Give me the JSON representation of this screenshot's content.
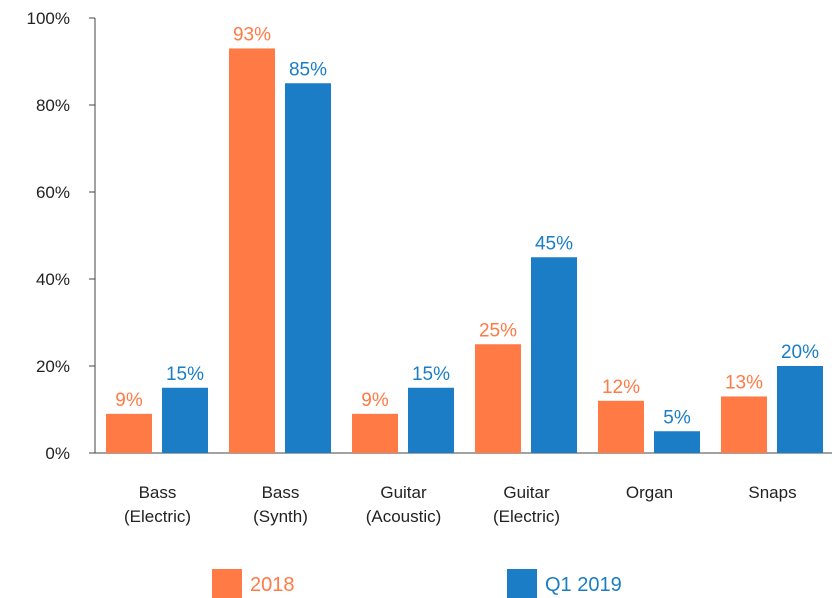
{
  "chart_data": {
    "type": "bar",
    "categories": [
      [
        "Bass",
        "(Electric)"
      ],
      [
        "Bass",
        "(Synth)"
      ],
      [
        "Guitar",
        "(Acoustic)"
      ],
      [
        "Guitar",
        "(Electric)"
      ],
      [
        "Organ"
      ],
      [
        "Snaps"
      ]
    ],
    "series": [
      {
        "name": "2018",
        "color": "#FF7A45",
        "values": [
          9,
          93,
          9,
          25,
          12,
          13
        ],
        "labels": [
          "9%",
          "93%",
          "9%",
          "25%",
          "12%",
          "13%"
        ]
      },
      {
        "name": "Q1 2019",
        "color": "#1B7DC6",
        "values": [
          15,
          85,
          15,
          45,
          5,
          20
        ],
        "labels": [
          "15%",
          "85%",
          "15%",
          "45%",
          "5%",
          "20%"
        ]
      }
    ],
    "ylim": [
      0,
      100
    ],
    "yticks": [
      0,
      20,
      40,
      60,
      80,
      100
    ],
    "ytick_labels": [
      "0%",
      "20%",
      "40%",
      "60%",
      "80%",
      "100%"
    ],
    "grid": false,
    "legend": "bottom"
  }
}
